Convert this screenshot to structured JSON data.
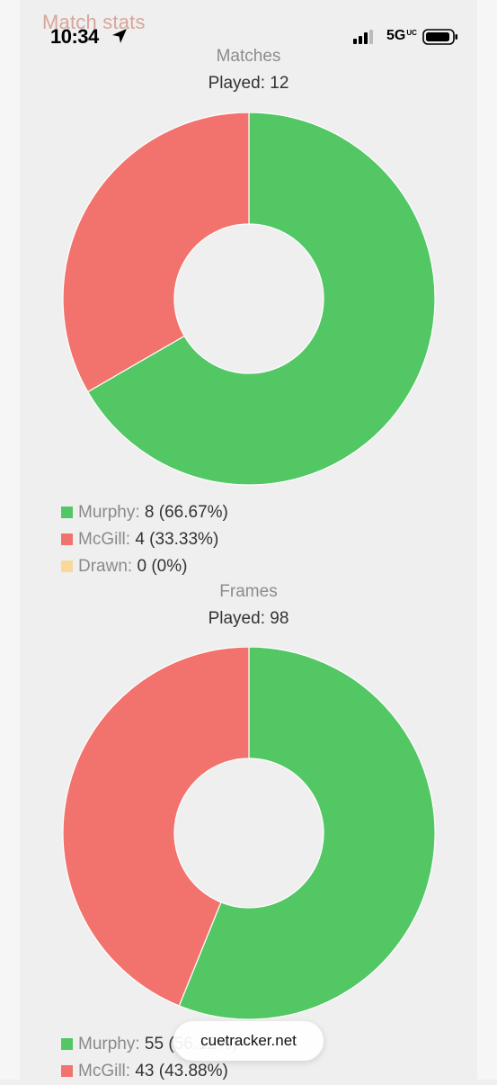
{
  "status_bar": {
    "time": "10:34",
    "network": "5G",
    "network_suffix": "UC",
    "location_icon": "location-arrow-icon",
    "signal_icon": "cellular-signal-icon",
    "battery_icon": "battery-icon"
  },
  "page": {
    "heading": "Match stats",
    "heading_color": "#d7a69a",
    "url": "cuetracker.net"
  },
  "colors": {
    "murphy": "#52c764",
    "mcgill": "#f2736e",
    "drawn": "#f9d89c"
  },
  "chart_data": [
    {
      "type": "pie",
      "title": "Matches",
      "subtitle": "Played: 12",
      "donut": true,
      "start": "top",
      "direction": "clockwise",
      "legend": "bottom-left",
      "categories": [
        "Murphy",
        "McGill",
        "Drawn"
      ],
      "values": [
        8,
        4,
        0
      ],
      "labels": [
        "8 (66.67%)",
        "4 (33.33%)",
        "0 (0%)"
      ],
      "colors": [
        "#52c764",
        "#f2736e",
        "#f9d89c"
      ]
    },
    {
      "type": "pie",
      "title": "Frames",
      "subtitle": "Played: 98",
      "donut": true,
      "start": "top",
      "direction": "clockwise",
      "legend": "bottom-left",
      "categories": [
        "Murphy",
        "McGill"
      ],
      "values": [
        55,
        43
      ],
      "labels": [
        "55 (56.12%)",
        "43 (43.88%)"
      ],
      "colors": [
        "#52c764",
        "#f2736e"
      ]
    }
  ]
}
